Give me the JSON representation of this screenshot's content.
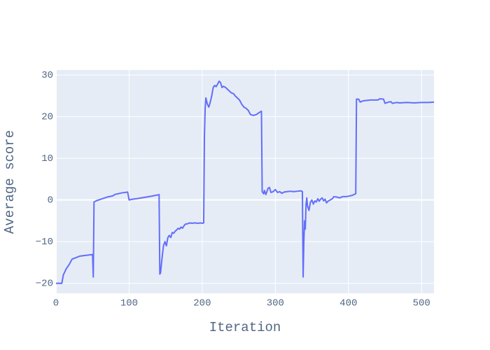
{
  "chart_data": {
    "type": "line",
    "x_label": "Iteration",
    "y_label": "Average score",
    "xlim": [
      0,
      517
    ],
    "ylim": [
      -22.4,
      31.2
    ],
    "xticks": [
      0,
      100,
      200,
      300,
      400,
      500
    ],
    "yticks": [
      {
        "value": -20,
        "label": "−20"
      },
      {
        "value": -10,
        "label": "−10"
      },
      0,
      10,
      20,
      30
    ],
    "grid": true,
    "background": "#e5ecf6",
    "x": [
      0,
      8,
      10,
      14,
      18,
      22,
      28,
      32,
      40,
      50,
      51,
      52,
      55,
      60,
      65,
      70,
      78,
      80,
      90,
      98,
      100,
      105,
      110,
      120,
      130,
      139,
      141,
      142,
      143,
      145,
      147,
      149,
      151,
      153,
      155,
      157,
      159,
      161,
      163,
      165,
      167,
      169,
      171,
      173,
      175,
      177,
      180,
      183,
      186,
      190,
      194,
      198,
      200,
      202,
      203,
      204,
      205,
      207,
      209,
      211,
      213,
      215,
      217,
      219,
      221,
      223,
      225,
      227,
      229,
      232,
      235,
      238,
      240,
      243,
      245,
      248,
      251,
      254,
      257,
      260,
      263,
      266,
      270,
      274,
      278,
      281,
      282,
      284,
      285,
      287,
      290,
      292,
      294,
      297,
      300,
      303,
      306,
      309,
      312,
      316,
      320,
      325,
      330,
      335,
      337,
      338,
      339,
      340,
      341,
      342,
      343,
      344,
      346,
      348,
      350,
      352,
      354,
      356,
      358,
      360,
      362,
      364,
      366,
      368,
      370,
      372,
      375,
      378,
      380,
      384,
      388,
      392,
      396,
      400,
      405,
      410,
      411,
      414,
      416,
      420,
      425,
      430,
      440,
      443,
      448,
      450,
      455,
      458,
      460,
      466,
      470,
      480,
      490,
      500,
      510,
      517
    ],
    "series": [
      {
        "name": "score",
        "color": "#636efa",
        "values": [
          -20,
          -20,
          -18,
          -16.5,
          -15.5,
          -14.2,
          -13.8,
          -13.5,
          -13.3,
          -13.1,
          -18.5,
          -0.5,
          -0.2,
          0.1,
          0.4,
          0.7,
          1.0,
          1.3,
          1.7,
          1.9,
          0.0,
          0.2,
          0.3,
          0.6,
          0.9,
          1.2,
          1.3,
          -17.8,
          -17.5,
          -14,
          -11,
          -10,
          -11,
          -9,
          -8.5,
          -9,
          -7.8,
          -8,
          -7.5,
          -7.2,
          -6.8,
          -7,
          -6.5,
          -6.8,
          -6.2,
          -5.8,
          -5.7,
          -5.5,
          -5.6,
          -5.5,
          -5.6,
          -5.5,
          -5.6,
          -5.5,
          15,
          22,
          24.5,
          23,
          22.3,
          23.5,
          25,
          27,
          27.5,
          27.2,
          27.8,
          28.5,
          28.2,
          27,
          27.3,
          27,
          26.5,
          26,
          25.7,
          25.5,
          25,
          24.5,
          24,
          23,
          22.3,
          22,
          21.5,
          20.5,
          20.3,
          20.5,
          21,
          21.3,
          2,
          1.5,
          2.3,
          1.3,
          2.8,
          3.0,
          1.8,
          2.0,
          2.5,
          1.8,
          2.0,
          1.6,
          1.9,
          2.0,
          2.1,
          2.0,
          2.1,
          2.2,
          2.0,
          -18.5,
          -10,
          -5,
          -7,
          -1,
          0.5,
          -1.5,
          -2.5,
          -0.5,
          0,
          -1,
          -0.2,
          -0.5,
          0.3,
          -0.3,
          0.2,
          0.5,
          -0.2,
          0.2,
          -0.7,
          -0.3,
          0,
          0.3,
          0.8,
          0.7,
          0.5,
          0.8,
          0.8,
          0.9,
          1.1,
          1.5,
          24.2,
          24.2,
          23.5,
          23.8,
          23.9,
          24,
          24,
          24.3,
          24.2,
          23.2,
          23.5,
          23.6,
          23.2,
          23.4,
          23.3,
          23.4,
          23.3,
          23.4,
          23.4,
          23.5
        ]
      }
    ]
  }
}
